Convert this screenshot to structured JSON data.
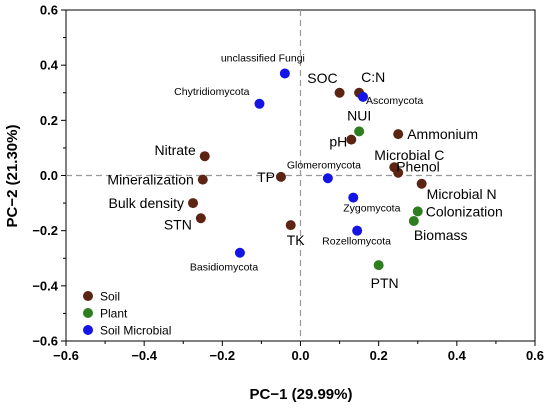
{
  "chart_data": {
    "type": "scatter",
    "xlabel": "PC−1 (29.99%)",
    "ylabel": "PC−2 (21.30%)",
    "xlim": [
      -0.6,
      0.6
    ],
    "ylim": [
      -0.6,
      0.6
    ],
    "xticks": [
      "−0.6",
      "−0.4",
      "−0.2",
      "0.0",
      "0.2",
      "0.4",
      "0.6"
    ],
    "yticks": [
      "−0.6",
      "−0.4",
      "−0.2",
      "0.0",
      "0.2",
      "0.4",
      "0.6"
    ],
    "reference_lines": {
      "x": 0,
      "y": 0,
      "style": "dashed"
    },
    "grid": false,
    "legend_position": "bottom-left",
    "series": [
      {
        "name": "Soil",
        "color": "#5c2413",
        "points": [
          {
            "label": "SOC",
            "x": 0.1,
            "y": 0.3,
            "size": "big"
          },
          {
            "label": "C:N",
            "x": 0.15,
            "y": 0.3,
            "size": "big"
          },
          {
            "label": "pH",
            "x": 0.13,
            "y": 0.13,
            "size": "big"
          },
          {
            "label": "Ammonium",
            "x": 0.25,
            "y": 0.15,
            "size": "big"
          },
          {
            "label": "Microbial C",
            "x": 0.24,
            "y": 0.03,
            "size": "big"
          },
          {
            "label": "Phenol",
            "x": 0.25,
            "y": 0.01,
            "size": "big"
          },
          {
            "label": "Microbial N",
            "x": 0.31,
            "y": -0.03,
            "size": "big"
          },
          {
            "label": "Nitrate",
            "x": -0.245,
            "y": 0.07,
            "size": "big"
          },
          {
            "label": "Mineralization",
            "x": -0.25,
            "y": -0.015,
            "size": "big"
          },
          {
            "label": "TP",
            "x": -0.05,
            "y": -0.005,
            "size": "big"
          },
          {
            "label": "Bulk density",
            "x": -0.275,
            "y": -0.1,
            "size": "big"
          },
          {
            "label": "STN",
            "x": -0.255,
            "y": -0.155,
            "size": "big"
          },
          {
            "label": "TK",
            "x": -0.025,
            "y": -0.18,
            "size": "big"
          }
        ]
      },
      {
        "name": "Plant",
        "color": "#2e7d1e",
        "points": [
          {
            "label": "NUI",
            "x": 0.15,
            "y": 0.16,
            "size": "big"
          },
          {
            "label": "Colonization",
            "x": 0.3,
            "y": -0.13,
            "size": "big"
          },
          {
            "label": "Biomass",
            "x": 0.29,
            "y": -0.165,
            "size": "big"
          },
          {
            "label": "PTN",
            "x": 0.2,
            "y": -0.325,
            "size": "big"
          }
        ]
      },
      {
        "name": "Soil Microbial",
        "color": "#1414e6",
        "points": [
          {
            "label": "unclassified Fungi",
            "x": -0.04,
            "y": 0.37,
            "size": "small"
          },
          {
            "label": "Chytridiomycota",
            "x": -0.105,
            "y": 0.26,
            "size": "small"
          },
          {
            "label": "Ascomycota",
            "x": 0.16,
            "y": 0.285,
            "size": "small"
          },
          {
            "label": "Glomeromycota",
            "x": 0.07,
            "y": -0.01,
            "size": "small"
          },
          {
            "label": "Zygomycota",
            "x": 0.135,
            "y": -0.08,
            "size": "small"
          },
          {
            "label": "Rozellomycota",
            "x": 0.145,
            "y": -0.2,
            "size": "small"
          },
          {
            "label": "Basidiomycota",
            "x": -0.155,
            "y": -0.28,
            "size": "small"
          }
        ]
      }
    ]
  }
}
